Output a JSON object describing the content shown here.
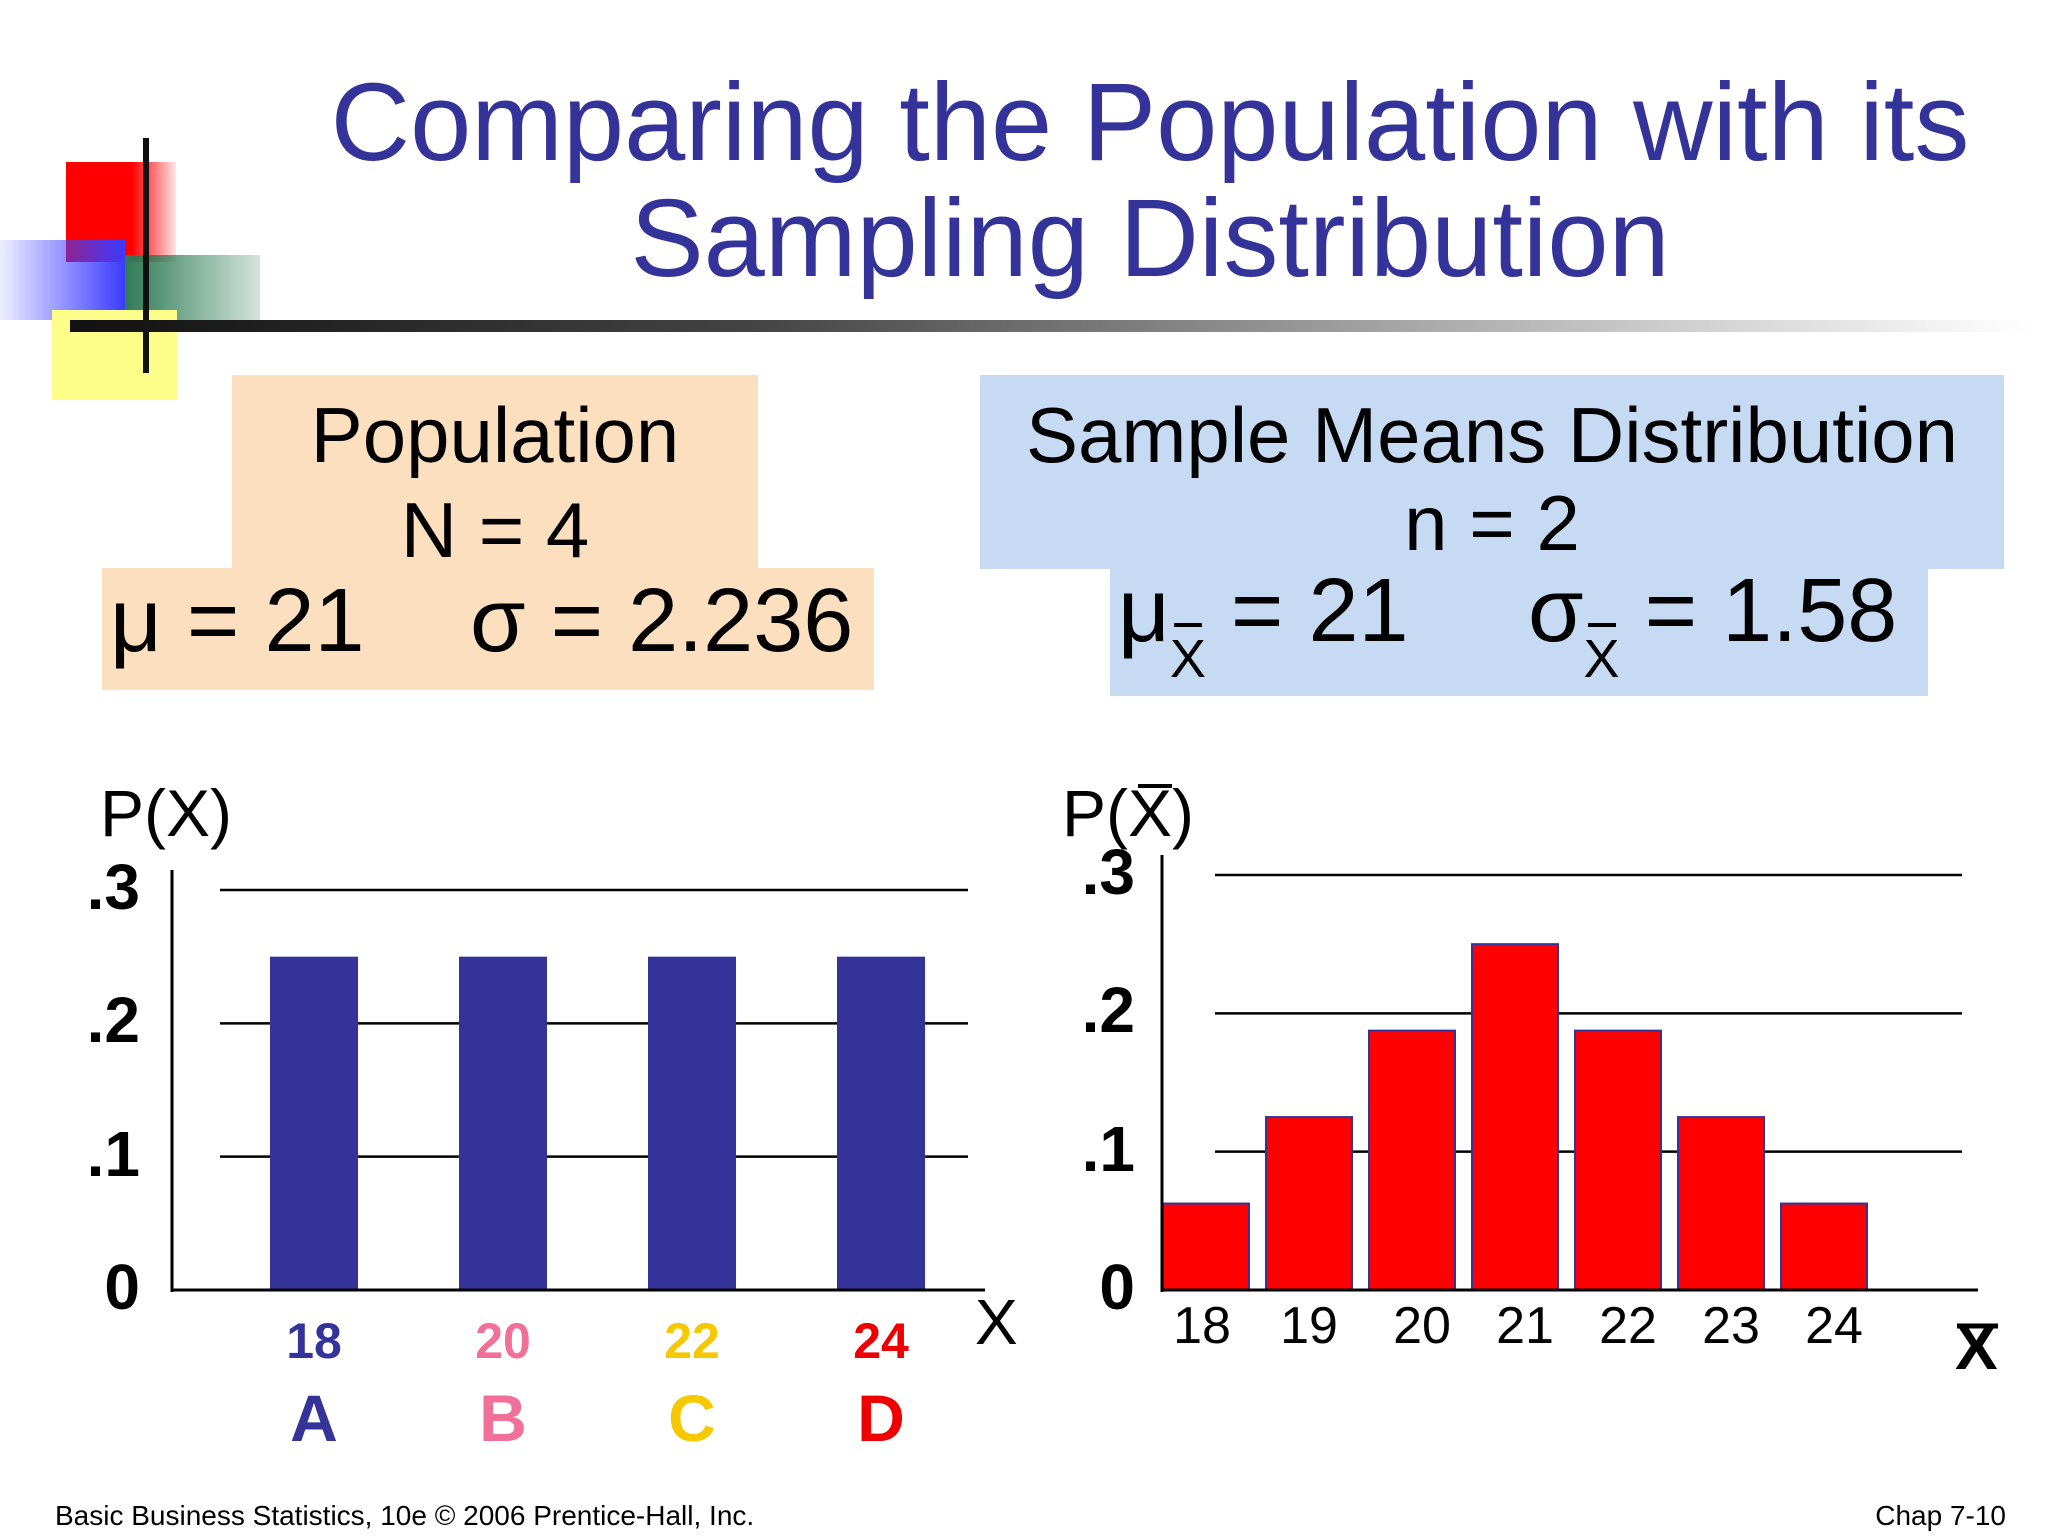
{
  "title": "Comparing the Population with its Sampling Distribution",
  "population_box": {
    "heading": "Population",
    "size": "N = 4",
    "mu_symbol": "μ",
    "mu_eq": "= 21",
    "sigma_symbol": "σ",
    "sigma_eq": "= 2.236"
  },
  "sample_box": {
    "heading": "Sample Means Distribution",
    "size": "n = 2",
    "mu_symbol": "μ",
    "mu_sub": "X",
    "mu_eq": "= 21",
    "sigma_symbol": "σ",
    "sigma_sub": "X",
    "sigma_eq": "= 1.58"
  },
  "chart_data": [
    {
      "type": "bar",
      "ylabel": "P(X)",
      "xlabel": "X",
      "y_ticks": [
        "0",
        ".1",
        ".2",
        ".3"
      ],
      "ylim": [
        0,
        0.3
      ],
      "grid": true,
      "categories": [
        "18",
        "20",
        "22",
        "24"
      ],
      "category_letters": [
        "A",
        "B",
        "C",
        "D"
      ],
      "category_colors": [
        "#333399",
        "#f0709a",
        "#f5c800",
        "#ee0000"
      ],
      "values": [
        0.25,
        0.25,
        0.25,
        0.25
      ],
      "bar_color": "#333399"
    },
    {
      "type": "bar",
      "ylabel": "P(X)",
      "ylabel_has_bar": true,
      "xlabel": "X",
      "xlabel_has_bar": true,
      "y_ticks": [
        "0",
        ".1",
        ".2",
        ".3"
      ],
      "ylim": [
        0,
        0.3
      ],
      "grid": true,
      "categories": [
        "18",
        "19",
        "20",
        "21",
        "22",
        "23",
        "24"
      ],
      "values": [
        0.0625,
        0.125,
        0.1875,
        0.25,
        0.1875,
        0.125,
        0.0625
      ],
      "bar_color": "#ff0000",
      "bar_outline": "#333399"
    }
  ],
  "footer": {
    "left": "Basic Business Statistics, 10e © 2006 Prentice-Hall, Inc.",
    "right": "Chap 7-10"
  },
  "colors": {
    "title": "#333399",
    "population_box": "#fbdfbf",
    "sample_box": "#c6daf4"
  }
}
